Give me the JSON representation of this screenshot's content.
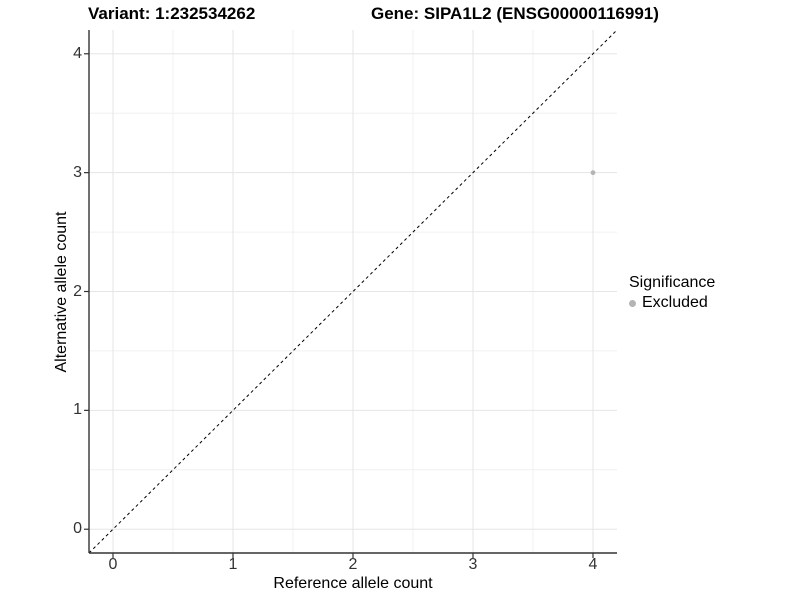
{
  "header": {
    "variant_title": "Variant: 1:232534262",
    "gene_title": "Gene: SIPA1L2 (ENSG00000116991)"
  },
  "chart_data": {
    "type": "scatter",
    "title": "Variant: 1:232534262  |  Gene: SIPA1L2 (ENSG00000116991)",
    "xlabel": "Reference allele count",
    "ylabel": "Alternative allele count",
    "xlim": [
      -0.2,
      4.2
    ],
    "ylim": [
      -0.2,
      4.2
    ],
    "x_ticks": [
      0,
      1,
      2,
      3,
      4
    ],
    "y_ticks": [
      0,
      1,
      2,
      3,
      4
    ],
    "grid": "major+minor",
    "minor_tick_step": 0.5,
    "series": [
      {
        "name": "Excluded",
        "color": "#b4b4b4",
        "points": [
          {
            "x": 4,
            "y": 3
          }
        ]
      }
    ],
    "identity_line": {
      "from": [
        -0.2,
        -0.2
      ],
      "to": [
        4.2,
        4.2
      ],
      "style": "dashed",
      "color": "#000000"
    },
    "legend": {
      "title": "Significance",
      "position": "right",
      "items": [
        {
          "label": "Excluded",
          "color": "#b4b4b4"
        }
      ]
    }
  },
  "colors": {
    "background": "#ffffff",
    "grid_major": "#e5e5e5",
    "grid_minor": "#f0f0f0",
    "axis_line": "#333333",
    "tick_text": "#333333",
    "point": "#b4b4b4"
  }
}
